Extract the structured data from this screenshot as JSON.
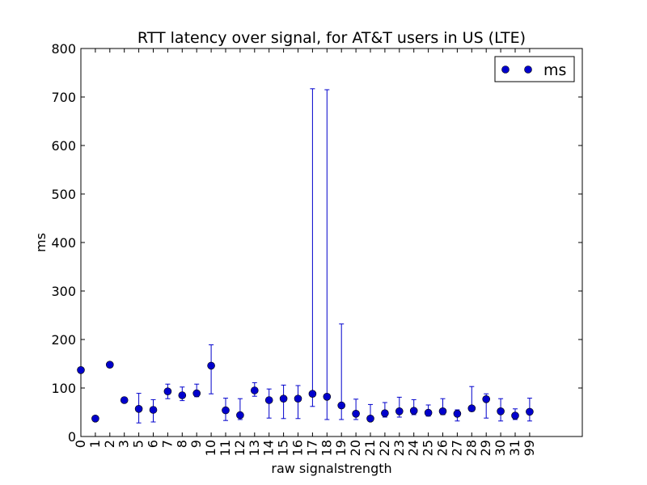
{
  "chart_data": {
    "type": "scatter",
    "title": "RTT latency over signal, for AT&T users in US (LTE)",
    "xlabel": "raw signalstrength",
    "ylabel": "ms",
    "ylim": [
      0,
      800
    ],
    "yticks": [
      0,
      100,
      200,
      300,
      400,
      500,
      600,
      700,
      800
    ],
    "categories": [
      "0",
      "1",
      "2",
      "3",
      "5",
      "6",
      "7",
      "8",
      "9",
      "10",
      "11",
      "12",
      "13",
      "14",
      "15",
      "16",
      "17",
      "18",
      "19",
      "20",
      "21",
      "22",
      "23",
      "24",
      "25",
      "26",
      "27",
      "28",
      "29",
      "30",
      "31",
      "99"
    ],
    "legend": {
      "entries": [
        "ms"
      ],
      "position": "top-right"
    },
    "series": [
      {
        "name": "ms",
        "color": "#0000cc",
        "marker": "circle",
        "values": [
          137,
          37,
          148,
          75,
          57,
          55,
          93,
          85,
          89,
          146,
          54,
          44,
          95,
          75,
          78,
          78,
          88,
          82,
          64,
          47,
          37,
          48,
          52,
          53,
          49,
          52,
          47,
          58,
          77,
          52,
          43,
          51
        ],
        "err_low": [
          137,
          37,
          148,
          75,
          28,
          30,
          78,
          74,
          82,
          88,
          33,
          35,
          83,
          38,
          37,
          37,
          62,
          35,
          35,
          35,
          35,
          40,
          40,
          45,
          42,
          45,
          32,
          52,
          38,
          32,
          35,
          32
        ],
        "err_high": [
          137,
          37,
          148,
          75,
          89,
          76,
          108,
          102,
          108,
          189,
          79,
          78,
          111,
          98,
          106,
          105,
          717,
          715,
          232,
          77,
          66,
          70,
          81,
          76,
          65,
          78,
          55,
          103,
          88,
          78,
          57,
          79
        ]
      }
    ]
  }
}
